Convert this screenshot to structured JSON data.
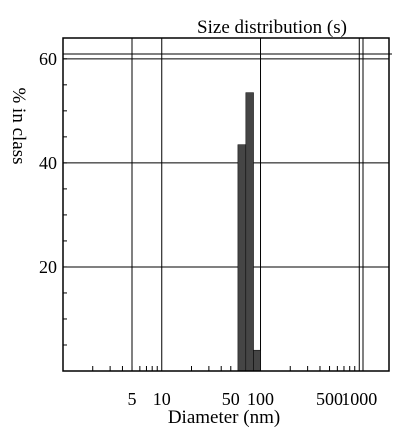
{
  "chart_data": {
    "type": "bar",
    "title": "Size distribution (s)",
    "xlabel": "Diameter (nm)",
    "ylabel": "% in class",
    "x_scale": "log",
    "xlim": [
      1,
      2000
    ],
    "ylim": [
      0,
      64
    ],
    "x_ticks": [
      {
        "value": 5,
        "label": "5"
      },
      {
        "value": 10,
        "label": "10"
      },
      {
        "value": 50,
        "label": "50"
      },
      {
        "value": 100,
        "label": "100"
      },
      {
        "value": 500,
        "label": "500"
      },
      {
        "value": 1000,
        "label": "1000"
      }
    ],
    "y_ticks": [
      {
        "value": 20,
        "label": "20"
      },
      {
        "value": 40,
        "label": "40"
      },
      {
        "value": 60,
        "label": "60"
      }
    ],
    "bars": [
      {
        "x0": 59,
        "x1": 71,
        "value": 43.5
      },
      {
        "x0": 71,
        "x1": 85,
        "value": 53.5
      },
      {
        "x0": 85,
        "x1": 100,
        "value": 4
      }
    ],
    "grid": true,
    "colors": {
      "bar": "#454545",
      "grid": "#000000"
    }
  }
}
